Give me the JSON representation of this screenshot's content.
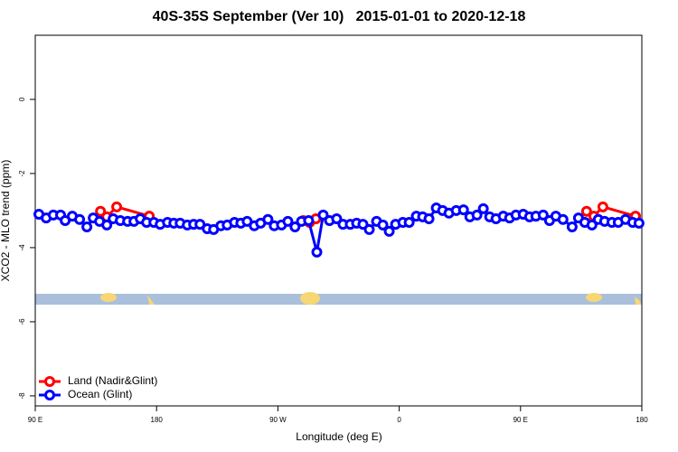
{
  "chart_data": {
    "type": "line",
    "title": "40S-35S September (Ver 10)   2015-01-01 to 2020-12-18",
    "xlabel": "Longitude (deg E)",
    "ylabel": "XCO2 - MLO trend (ppm)",
    "xlim": [
      90,
      540
    ],
    "ylim": [
      -8.27,
      1.73
    ],
    "xticks": [
      {
        "value": 90,
        "label": "90 E"
      },
      180,
      {
        "value": 270,
        "label": "90 W"
      },
      {
        "value": 360,
        "label": "0"
      },
      {
        "value": 450,
        "label": "90 E"
      },
      {
        "value": 540,
        "label": "180"
      }
    ],
    "yticks": [
      0,
      -2,
      -4,
      -6,
      -8
    ],
    "legend": "bottomleft",
    "series": [
      {
        "name": "Land (Nadir&Glint)",
        "color": "#ff0000",
        "x": [
          138.4,
          143.1,
          150.4,
          174.6,
          null,
          288.8,
          293.5,
          298.2,
          null,
          499.0,
          504.4,
          511.1,
          535.3
        ],
        "values": [
          -3.02,
          -3.17,
          -2.9,
          -3.15,
          null,
          -3.27,
          -3.32,
          -3.22,
          null,
          -3.02,
          -3.15,
          -2.9,
          -3.15
        ]
      },
      {
        "name": "Ocean (Glint)",
        "color": "#0000ff",
        "x": [
          92.7,
          98.1,
          103.4,
          108.8,
          112.2,
          117.5,
          122.9,
          128.3,
          133.0,
          137.7,
          143.1,
          147.8,
          153.1,
          158.5,
          163.2,
          167.9,
          172.6,
          178.0,
          182.7,
          188.1,
          192.8,
          197.5,
          202.8,
          207.5,
          212.2,
          217.6,
          222.3,
          227.7,
          232.4,
          237.8,
          242.5,
          247.2,
          252.5,
          257.2,
          262.6,
          267.3,
          272.7,
          277.4,
          282.7,
          287.5,
          292.8,
          298.9,
          303.6,
          308.3,
          313.6,
          318.3,
          323.7,
          328.4,
          333.1,
          337.8,
          343.2,
          347.9,
          352.6,
          357.3,
          362.7,
          367.4,
          372.7,
          377.4,
          382.1,
          387.5,
          392.2,
          396.9,
          402.3,
          407.7,
          412.4,
          417.7,
          422.4,
          427.1,
          431.8,
          437.2,
          441.9,
          446.6,
          452.0,
          456.7,
          461.4,
          466.8,
          471.5,
          476.2,
          481.5,
          488.3,
          493.0,
          497.7,
          503.0,
          507.7,
          512.4,
          517.8,
          522.5,
          527.9,
          533.2,
          537.9
        ],
        "values": [
          -3.1,
          -3.2,
          -3.12,
          -3.12,
          -3.27,
          -3.15,
          -3.24,
          -3.44,
          -3.2,
          -3.29,
          -3.39,
          -3.22,
          -3.27,
          -3.29,
          -3.29,
          -3.22,
          -3.32,
          -3.32,
          -3.37,
          -3.32,
          -3.34,
          -3.34,
          -3.39,
          -3.37,
          -3.37,
          -3.49,
          -3.51,
          -3.41,
          -3.39,
          -3.32,
          -3.34,
          -3.29,
          -3.41,
          -3.34,
          -3.24,
          -3.41,
          -3.39,
          -3.29,
          -3.44,
          -3.29,
          -3.27,
          -4.12,
          -3.12,
          -3.27,
          -3.22,
          -3.37,
          -3.37,
          -3.34,
          -3.37,
          -3.51,
          -3.29,
          -3.39,
          -3.56,
          -3.37,
          -3.32,
          -3.32,
          -3.15,
          -3.17,
          -3.22,
          -2.93,
          -3.0,
          -3.07,
          -3.0,
          -2.98,
          -3.17,
          -3.12,
          -2.95,
          -3.17,
          -3.22,
          -3.15,
          -3.2,
          -3.12,
          -3.1,
          -3.17,
          -3.15,
          -3.12,
          -3.27,
          -3.15,
          -3.24,
          -3.44,
          -3.2,
          -3.32,
          -3.39,
          -3.24,
          -3.29,
          -3.32,
          -3.32,
          -3.24,
          -3.32,
          -3.34
        ]
      }
    ]
  }
}
